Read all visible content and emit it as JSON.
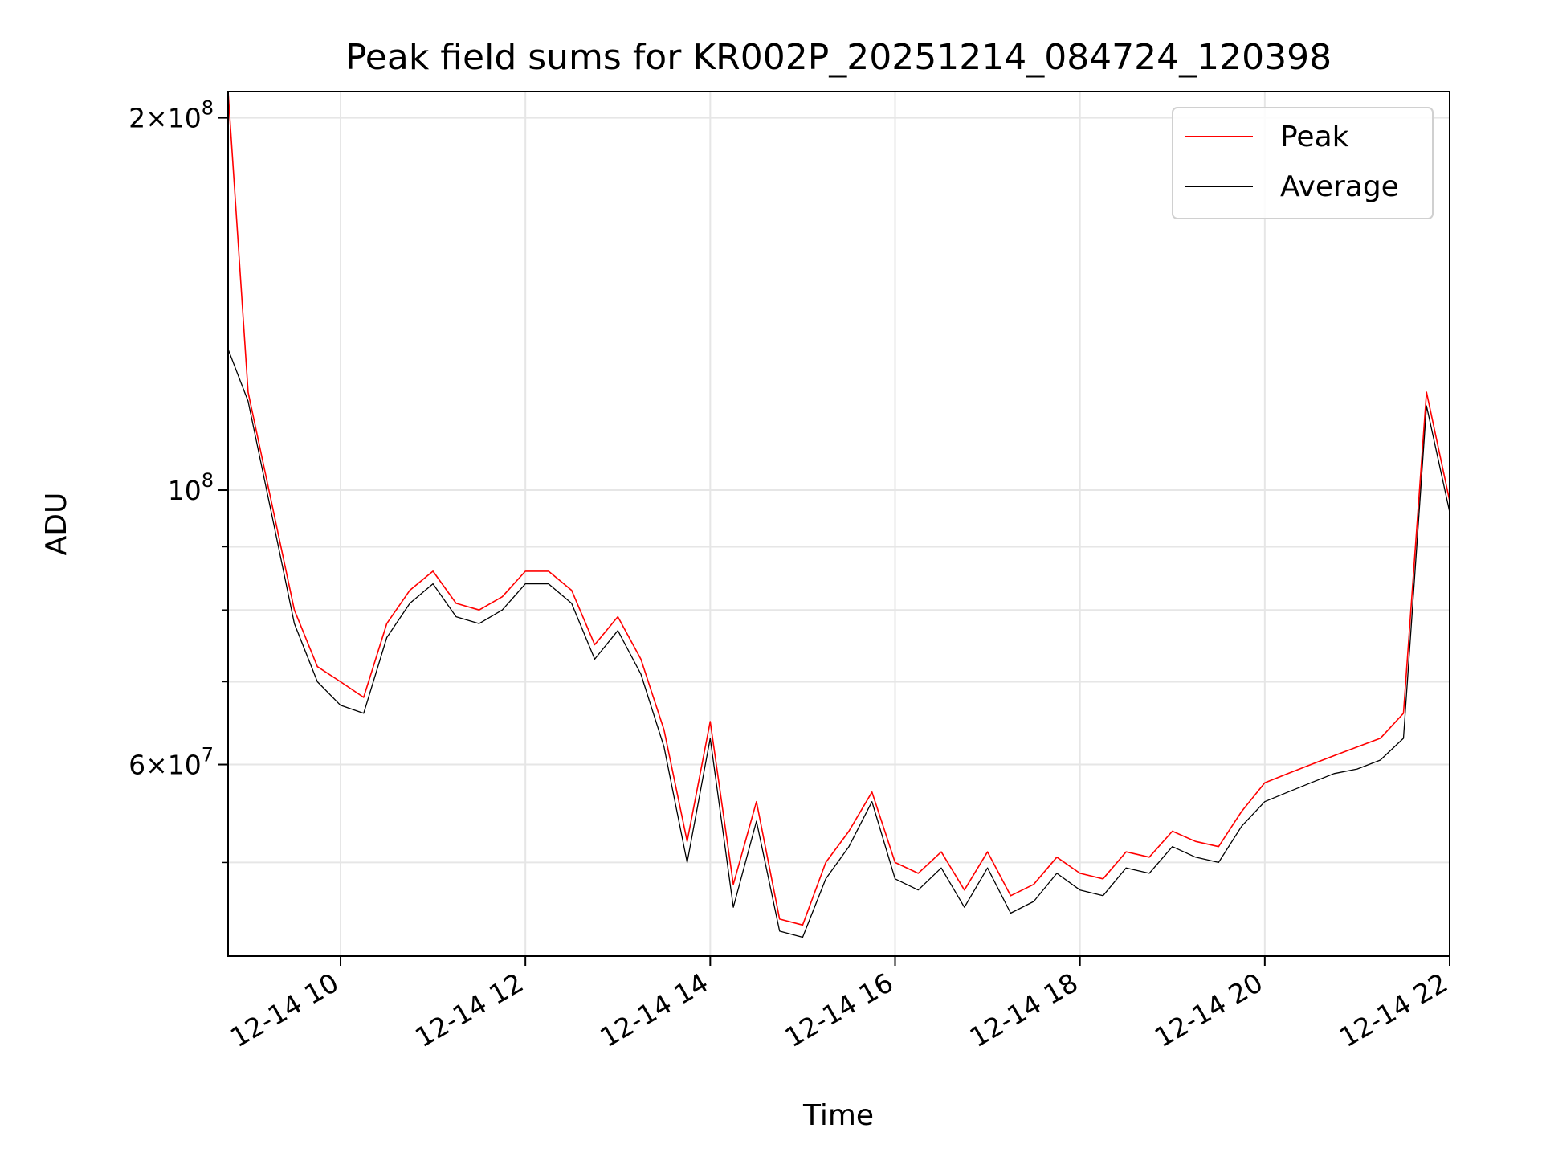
{
  "chart_data": {
    "type": "line",
    "title": "Peak field sums for KR002P_20251214_084724_120398",
    "xlabel": "Time",
    "ylabel": "ADU",
    "yscale": "log",
    "ylim": [
      42000000,
      210000000
    ],
    "xlim": [
      "2025-12-14 08:47",
      "2025-12-14 22:00"
    ],
    "grid": true,
    "legend_position": "top-right",
    "x_ticks": [
      "12-14 10",
      "12-14 12",
      "12-14 14",
      "12-14 16",
      "12-14 18",
      "12-14 20",
      "12-14 22"
    ],
    "y_ticks": [
      {
        "value": 200000000,
        "mantissa": "2",
        "times": "×",
        "base": "10",
        "exp": "8"
      },
      {
        "value": 100000000,
        "mantissa": "",
        "times": "",
        "base": "10",
        "exp": "8"
      },
      {
        "value": 60000000,
        "mantissa": "6",
        "times": "×",
        "base": "10",
        "exp": "7"
      }
    ],
    "y_minor_ticks": [
      50000000,
      70000000,
      80000000,
      90000000
    ],
    "x": [
      "2025-12-14 08:47",
      "2025-12-14 09:00",
      "2025-12-14 09:15",
      "2025-12-14 09:30",
      "2025-12-14 09:45",
      "2025-12-14 10:00",
      "2025-12-14 10:15",
      "2025-12-14 10:30",
      "2025-12-14 10:45",
      "2025-12-14 11:00",
      "2025-12-14 11:15",
      "2025-12-14 11:30",
      "2025-12-14 11:45",
      "2025-12-14 12:00",
      "2025-12-14 12:15",
      "2025-12-14 12:30",
      "2025-12-14 12:45",
      "2025-12-14 13:00",
      "2025-12-14 13:15",
      "2025-12-14 13:30",
      "2025-12-14 13:45",
      "2025-12-14 14:00",
      "2025-12-14 14:15",
      "2025-12-14 14:30",
      "2025-12-14 14:45",
      "2025-12-14 15:00",
      "2025-12-14 15:15",
      "2025-12-14 15:30",
      "2025-12-14 15:45",
      "2025-12-14 16:00",
      "2025-12-14 16:15",
      "2025-12-14 16:30",
      "2025-12-14 16:45",
      "2025-12-14 17:00",
      "2025-12-14 17:15",
      "2025-12-14 17:30",
      "2025-12-14 17:45",
      "2025-12-14 18:00",
      "2025-12-14 18:15",
      "2025-12-14 18:30",
      "2025-12-14 18:45",
      "2025-12-14 19:00",
      "2025-12-14 19:15",
      "2025-12-14 19:30",
      "2025-12-14 19:45",
      "2025-12-14 20:00",
      "2025-12-14 20:15",
      "2025-12-14 20:30",
      "2025-12-14 20:45",
      "2025-12-14 21:00",
      "2025-12-14 21:15",
      "2025-12-14 21:30",
      "2025-12-14 21:45",
      "2025-12-14 22:00"
    ],
    "series": [
      {
        "name": "Peak",
        "color": "#ff0000",
        "values": [
          210000000,
          120000000,
          98000000,
          80000000,
          72000000,
          70000000,
          68000000,
          78000000,
          83000000,
          86000000,
          81000000,
          80000000,
          82000000,
          86000000,
          86000000,
          83000000,
          75000000,
          79000000,
          73000000,
          64000000,
          52000000,
          65000000,
          48000000,
          56000000,
          45000000,
          44500000,
          50000000,
          53000000,
          57000000,
          50000000,
          49000000,
          51000000,
          47500000,
          51000000,
          47000000,
          48000000,
          50500000,
          49000000,
          48500000,
          51000000,
          50500000,
          53000000,
          52000000,
          51500000,
          55000000,
          58000000,
          59000000,
          60000000,
          61000000,
          62000000,
          63000000,
          66000000,
          120000000,
          98000000
        ]
      },
      {
        "name": "Average",
        "color": "#000000",
        "values": [
          130000000,
          118000000,
          96000000,
          78000000,
          70000000,
          67000000,
          66000000,
          76000000,
          81000000,
          84000000,
          79000000,
          78000000,
          80000000,
          84000000,
          84000000,
          81000000,
          73000000,
          77000000,
          71000000,
          62000000,
          50000000,
          63000000,
          46000000,
          54000000,
          44000000,
          43500000,
          48500000,
          51500000,
          56000000,
          48500000,
          47500000,
          49500000,
          46000000,
          49500000,
          45500000,
          46500000,
          49000000,
          47500000,
          47000000,
          49500000,
          49000000,
          51500000,
          50500000,
          50000000,
          53500000,
          56000000,
          57000000,
          58000000,
          59000000,
          59500000,
          60500000,
          63000000,
          117000000,
          96000000
        ]
      }
    ]
  }
}
